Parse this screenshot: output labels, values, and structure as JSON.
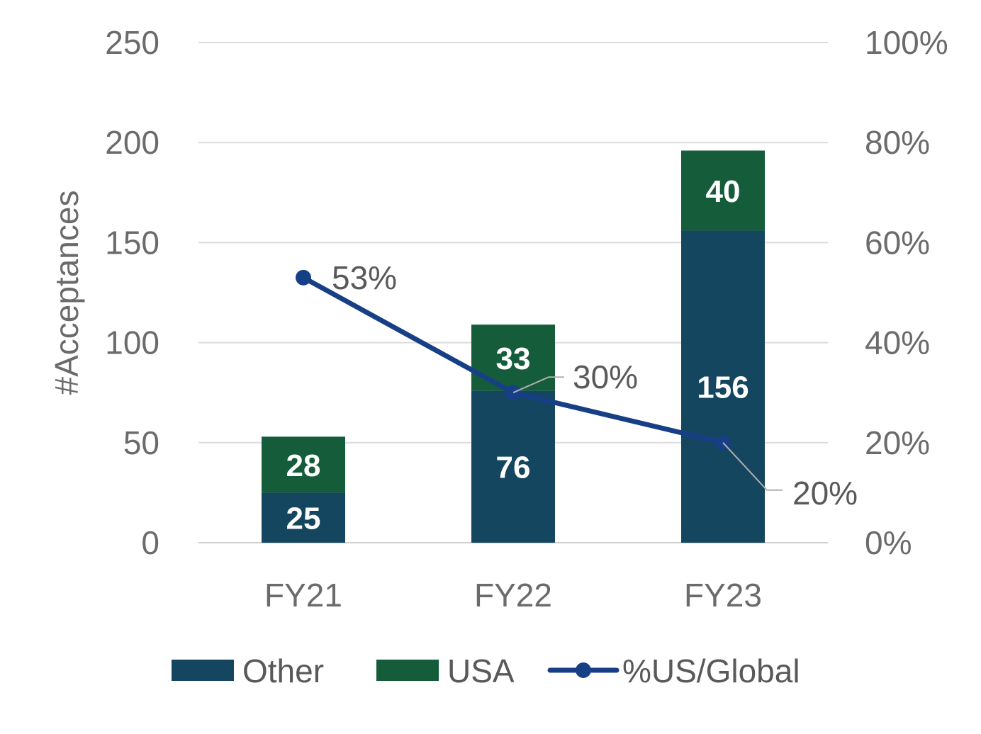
{
  "chart_data": {
    "type": "bar",
    "stacked": true,
    "categories": [
      "FY21",
      "FY22",
      "FY23"
    ],
    "series": [
      {
        "name": "Other",
        "values": [
          25,
          76,
          156
        ],
        "color": "#15465f"
      },
      {
        "name": "USA",
        "values": [
          28,
          33,
          40
        ],
        "color": "#155d3a"
      }
    ],
    "line_series": {
      "name": "%US/Global",
      "values": [
        53,
        30,
        20
      ],
      "labels": [
        "53%",
        "30%",
        "20%"
      ],
      "color": "#173f86",
      "axis": "right"
    },
    "ylabel": "#Acceptances",
    "ylim": [
      0,
      250
    ],
    "y_ticks": [
      "0",
      "50",
      "100",
      "150",
      "200",
      "250"
    ],
    "y2lim": [
      0,
      100
    ],
    "y2_ticks": [
      "0%",
      "20%",
      "40%",
      "60%",
      "80%",
      "100%"
    ],
    "grid": true,
    "legend_position": "bottom"
  }
}
